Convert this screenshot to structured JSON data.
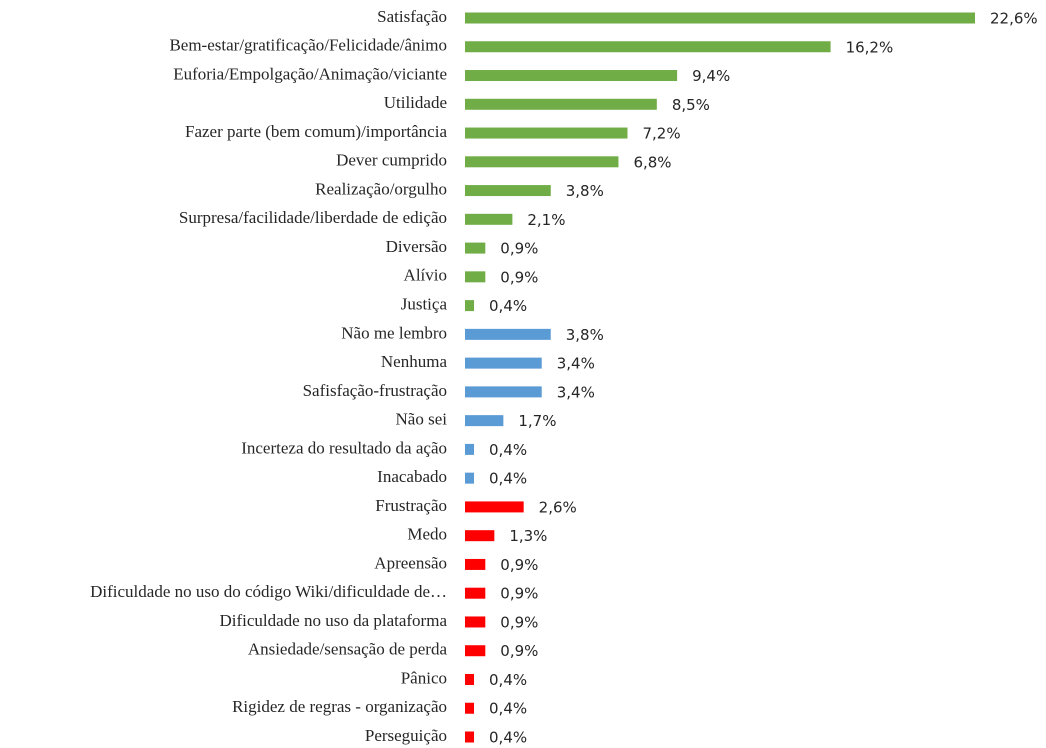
{
  "chart_data": {
    "type": "hbar",
    "categories": [
      "Satisfação",
      "Bem-estar/gratificação/Felicidade/ânimo",
      "Euforia/Empolgação/Animação/viciante",
      "Utilidade",
      "Fazer parte (bem comum)/importância",
      "Dever cumprido",
      "Realização/orgulho",
      "Surpresa/facilidade/liberdade de edição",
      "Diversão",
      "Alívio",
      "Justiça",
      "Não me lembro",
      "Nenhuma",
      "Safisfação-frustração",
      "Não sei",
      "Incerteza do resultado da ação",
      "Inacabado",
      "Frustração",
      "Medo",
      "Apreensão",
      "Dificuldade no uso do código Wiki/dificuldade de…",
      "Dificuldade no uso da plataforma",
      "Ansiedade/sensação de perda",
      "Pânico",
      "Rigidez de regras - organização",
      "Perseguição"
    ],
    "values": [
      22.6,
      16.2,
      9.4,
      8.5,
      7.2,
      6.8,
      3.8,
      2.1,
      0.9,
      0.9,
      0.4,
      3.8,
      3.4,
      3.4,
      1.7,
      0.4,
      0.4,
      2.6,
      1.3,
      0.9,
      0.9,
      0.9,
      0.9,
      0.4,
      0.4,
      0.4
    ],
    "value_labels": [
      "22,6%",
      "16,2%",
      "9,4%",
      "8,5%",
      "7,2%",
      "6,8%",
      "3,8%",
      "2,1%",
      "0,9%",
      "0,9%",
      "0,4%",
      "3,8%",
      "3,4%",
      "3,4%",
      "1,7%",
      "0,4%",
      "0,4%",
      "2,6%",
      "1,3%",
      "0,9%",
      "0,9%",
      "0,9%",
      "0,9%",
      "0,4%",
      "0,4%",
      "0,4%"
    ],
    "colors": [
      "#70ad47",
      "#70ad47",
      "#70ad47",
      "#70ad47",
      "#70ad47",
      "#70ad47",
      "#70ad47",
      "#70ad47",
      "#70ad47",
      "#70ad47",
      "#70ad47",
      "#5b9bd5",
      "#5b9bd5",
      "#5b9bd5",
      "#5b9bd5",
      "#5b9bd5",
      "#5b9bd5",
      "#ff0000",
      "#ff0000",
      "#ff0000",
      "#ff0000",
      "#ff0000",
      "#ff0000",
      "#ff0000",
      "#ff0000",
      "#ff0000"
    ]
  }
}
